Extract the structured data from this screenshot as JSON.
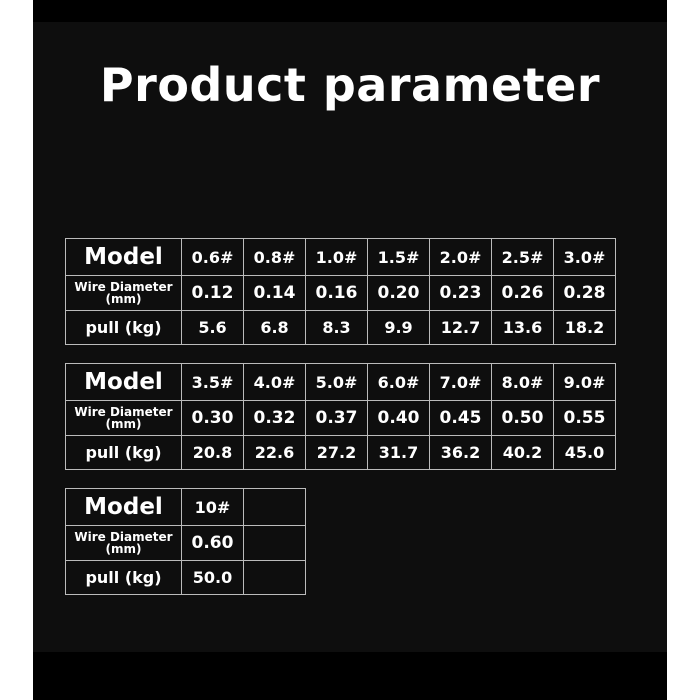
{
  "title": "Product parameter",
  "labels": {
    "model": "Model",
    "wire": "Wire Diameter",
    "unit": "(mm)",
    "pull": "pull (kg)"
  },
  "tables": [
    {
      "models": [
        "0.6#",
        "0.8#",
        "1.0#",
        "1.5#",
        "2.0#",
        "2.5#",
        "3.0#"
      ],
      "diameter": [
        "0.12",
        "0.14",
        "0.16",
        "0.20",
        "0.23",
        "0.26",
        "0.28"
      ],
      "pull": [
        "5.6",
        "6.8",
        "8.3",
        "9.9",
        "12.7",
        "13.6",
        "18.2"
      ]
    },
    {
      "models": [
        "3.5#",
        "4.0#",
        "5.0#",
        "6.0#",
        "7.0#",
        "8.0#",
        "9.0#"
      ],
      "diameter": [
        "0.30",
        "0.32",
        "0.37",
        "0.40",
        "0.45",
        "0.50",
        "0.55"
      ],
      "pull": [
        "20.8",
        "22.6",
        "27.2",
        "31.7",
        "36.2",
        "40.2",
        "45.0"
      ]
    },
    {
      "models": [
        "10#",
        ""
      ],
      "diameter": [
        "0.60",
        ""
      ],
      "pull": [
        "50.0",
        ""
      ]
    }
  ]
}
